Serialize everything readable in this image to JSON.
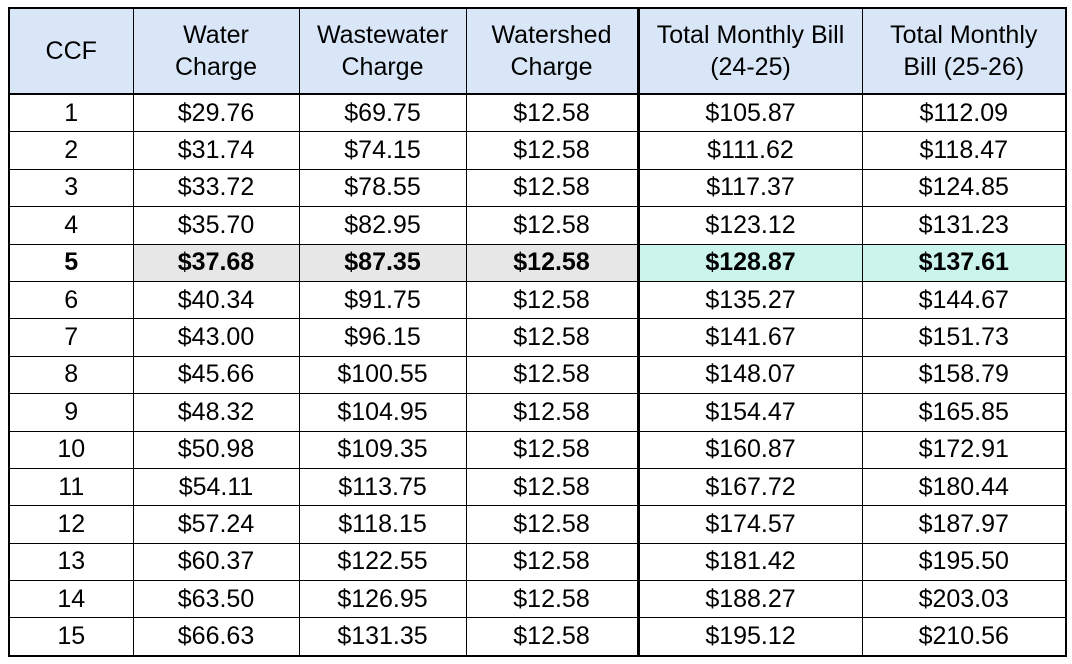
{
  "chart_data": {
    "type": "table",
    "title": "",
    "columns": [
      {
        "label": "CCF",
        "lines": [
          "CCF"
        ]
      },
      {
        "label": "Water Charge",
        "lines": [
          "Water",
          "Charge"
        ]
      },
      {
        "label": "Wastewater Charge",
        "lines": [
          "Wastewater",
          "Charge"
        ]
      },
      {
        "label": "Watershed Charge",
        "lines": [
          "Watershed",
          "Charge"
        ]
      },
      {
        "label": "Total Monthly Bill (24-25)",
        "lines": [
          "Total Monthly Bill",
          "(24-25)"
        ]
      },
      {
        "label": "Total Monthly Bill (25-26)",
        "lines": [
          "Total Monthly",
          "Bill (25-26)"
        ]
      }
    ],
    "column_keys": [
      "ccf",
      "water-charge",
      "wastewater-charge",
      "watershed-charge",
      "total-bill-24-25",
      "total-bill-25-26"
    ],
    "rows": [
      [
        "1",
        "$29.76",
        "$69.75",
        "$12.58",
        "$105.87",
        "$112.09"
      ],
      [
        "2",
        "$31.74",
        "$74.15",
        "$12.58",
        "$111.62",
        "$118.47"
      ],
      [
        "3",
        "$33.72",
        "$78.55",
        "$12.58",
        "$117.37",
        "$124.85"
      ],
      [
        "4",
        "$35.70",
        "$82.95",
        "$12.58",
        "$123.12",
        "$131.23"
      ],
      [
        "5",
        "$37.68",
        "$87.35",
        "$12.58",
        "$128.87",
        "$137.61"
      ],
      [
        "6",
        "$40.34",
        "$91.75",
        "$12.58",
        "$135.27",
        "$144.67"
      ],
      [
        "7",
        "$43.00",
        "$96.15",
        "$12.58",
        "$141.67",
        "$151.73"
      ],
      [
        "8",
        "$45.66",
        "$100.55",
        "$12.58",
        "$148.07",
        "$158.79"
      ],
      [
        "9",
        "$48.32",
        "$104.95",
        "$12.58",
        "$154.47",
        "$165.85"
      ],
      [
        "10",
        "$50.98",
        "$109.35",
        "$12.58",
        "$160.87",
        "$172.91"
      ],
      [
        "11",
        "$54.11",
        "$113.75",
        "$12.58",
        "$167.72",
        "$180.44"
      ],
      [
        "12",
        "$57.24",
        "$118.15",
        "$12.58",
        "$174.57",
        "$187.97"
      ],
      [
        "13",
        "$60.37",
        "$122.55",
        "$12.58",
        "$181.42",
        "$195.50"
      ],
      [
        "14",
        "$63.50",
        "$126.95",
        "$12.58",
        "$188.27",
        "$203.03"
      ],
      [
        "15",
        "$66.63",
        "$131.35",
        "$12.58",
        "$195.12",
        "$210.56"
      ]
    ],
    "highlight": {
      "ccf": "5",
      "gray_columns": [
        "water-charge",
        "wastewater-charge",
        "watershed-charge"
      ],
      "teal_columns": [
        "total-bill-24-25",
        "total-bill-25-26"
      ],
      "bold": true
    },
    "colors": {
      "header_bg": "#D9E6F7",
      "highlight_gray": "#E8E7E7",
      "highlight_teal": "#CBF4EC",
      "border": "#000000",
      "text": "#000000",
      "background": "#FFFFFF"
    },
    "layout": {
      "grid": true,
      "thick_border_block": "columns total-bill-24-25 and total-bill-25-26",
      "header_rows": 1,
      "body_rows": 15
    }
  }
}
